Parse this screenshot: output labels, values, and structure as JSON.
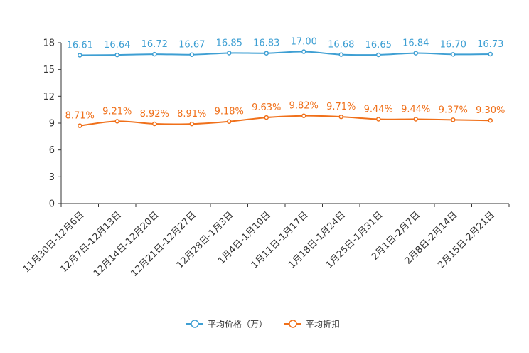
{
  "chart_data": {
    "type": "line",
    "categories": [
      "11月30日-12月6日",
      "12月7日-12月13日",
      "12月14日-12月20日",
      "12月21日-12月27日",
      "12月28日-1月3日",
      "1月4日-1月10日",
      "1月11日-1月17日",
      "1月18日-1月24日",
      "1月25日-1月31日",
      "2月1日-2月7日",
      "2月8日-2月14日",
      "2月15日-2月21日"
    ],
    "ylim": [
      0,
      18
    ],
    "yticks": [
      0,
      3,
      6,
      9,
      12,
      15,
      18
    ],
    "series": [
      {
        "name": "平均价格（万）",
        "color": "#3e9fd3",
        "values": [
          16.61,
          16.64,
          16.72,
          16.67,
          16.85,
          16.83,
          17.0,
          16.68,
          16.65,
          16.84,
          16.7,
          16.73
        ],
        "labels": [
          "16.61",
          "16.64",
          "16.72",
          "16.67",
          "16.85",
          "16.83",
          "17.00",
          "16.68",
          "16.65",
          "16.84",
          "16.70",
          "16.73"
        ]
      },
      {
        "name": "平均折扣",
        "color": "#f0701a",
        "values": [
          8.71,
          9.21,
          8.92,
          8.91,
          9.18,
          9.63,
          9.82,
          9.71,
          9.44,
          9.44,
          9.37,
          9.3
        ],
        "labels": [
          "8.71%",
          "9.21%",
          "8.92%",
          "8.91%",
          "9.18%",
          "9.63%",
          "9.82%",
          "9.71%",
          "9.44%",
          "9.44%",
          "9.37%",
          "9.30%"
        ]
      }
    ],
    "legend_position": "bottom-center"
  }
}
